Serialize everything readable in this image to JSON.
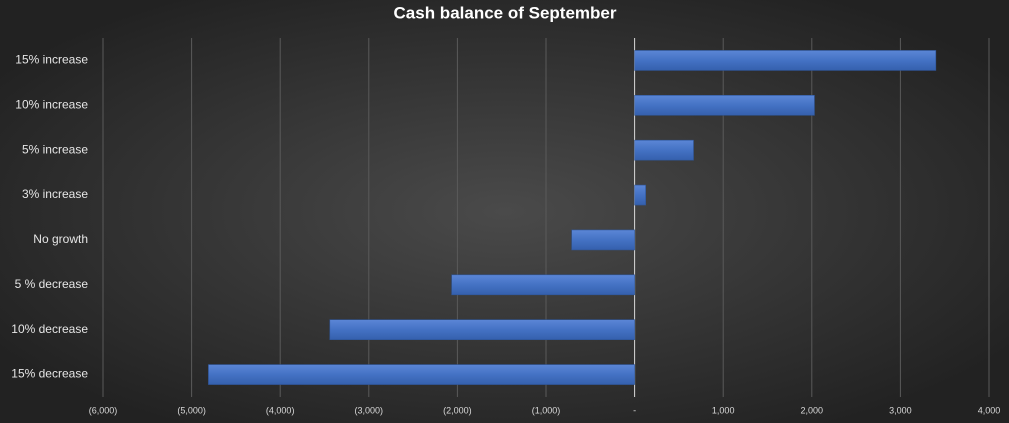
{
  "chart_data": {
    "type": "hbar",
    "title": "Cash balance of September",
    "categories": [
      "15% increase",
      "10% increase",
      "5% increase",
      "3% increase",
      "No growth",
      "5 % decrease",
      "10% decrease",
      "15% decrease"
    ],
    "values": [
      3400,
      2030,
      665,
      125,
      -710,
      -2065,
      -3440,
      -4810
    ],
    "color": "#4472c4",
    "xlim": [
      -6000,
      4000
    ],
    "xticks": [
      {
        "value": -6000,
        "label": "(6,000)"
      },
      {
        "value": -5000,
        "label": "(5,000)"
      },
      {
        "value": -4000,
        "label": "(4,000)"
      },
      {
        "value": -3000,
        "label": "(3,000)"
      },
      {
        "value": -2000,
        "label": "(2,000)"
      },
      {
        "value": -1000,
        "label": "(1,000)"
      },
      {
        "value": 0,
        "label": "-"
      },
      {
        "value": 1000,
        "label": "1,000"
      },
      {
        "value": 2000,
        "label": "2,000"
      },
      {
        "value": 3000,
        "label": "3,000"
      },
      {
        "value": 4000,
        "label": "4,000"
      }
    ],
    "grid": true
  }
}
